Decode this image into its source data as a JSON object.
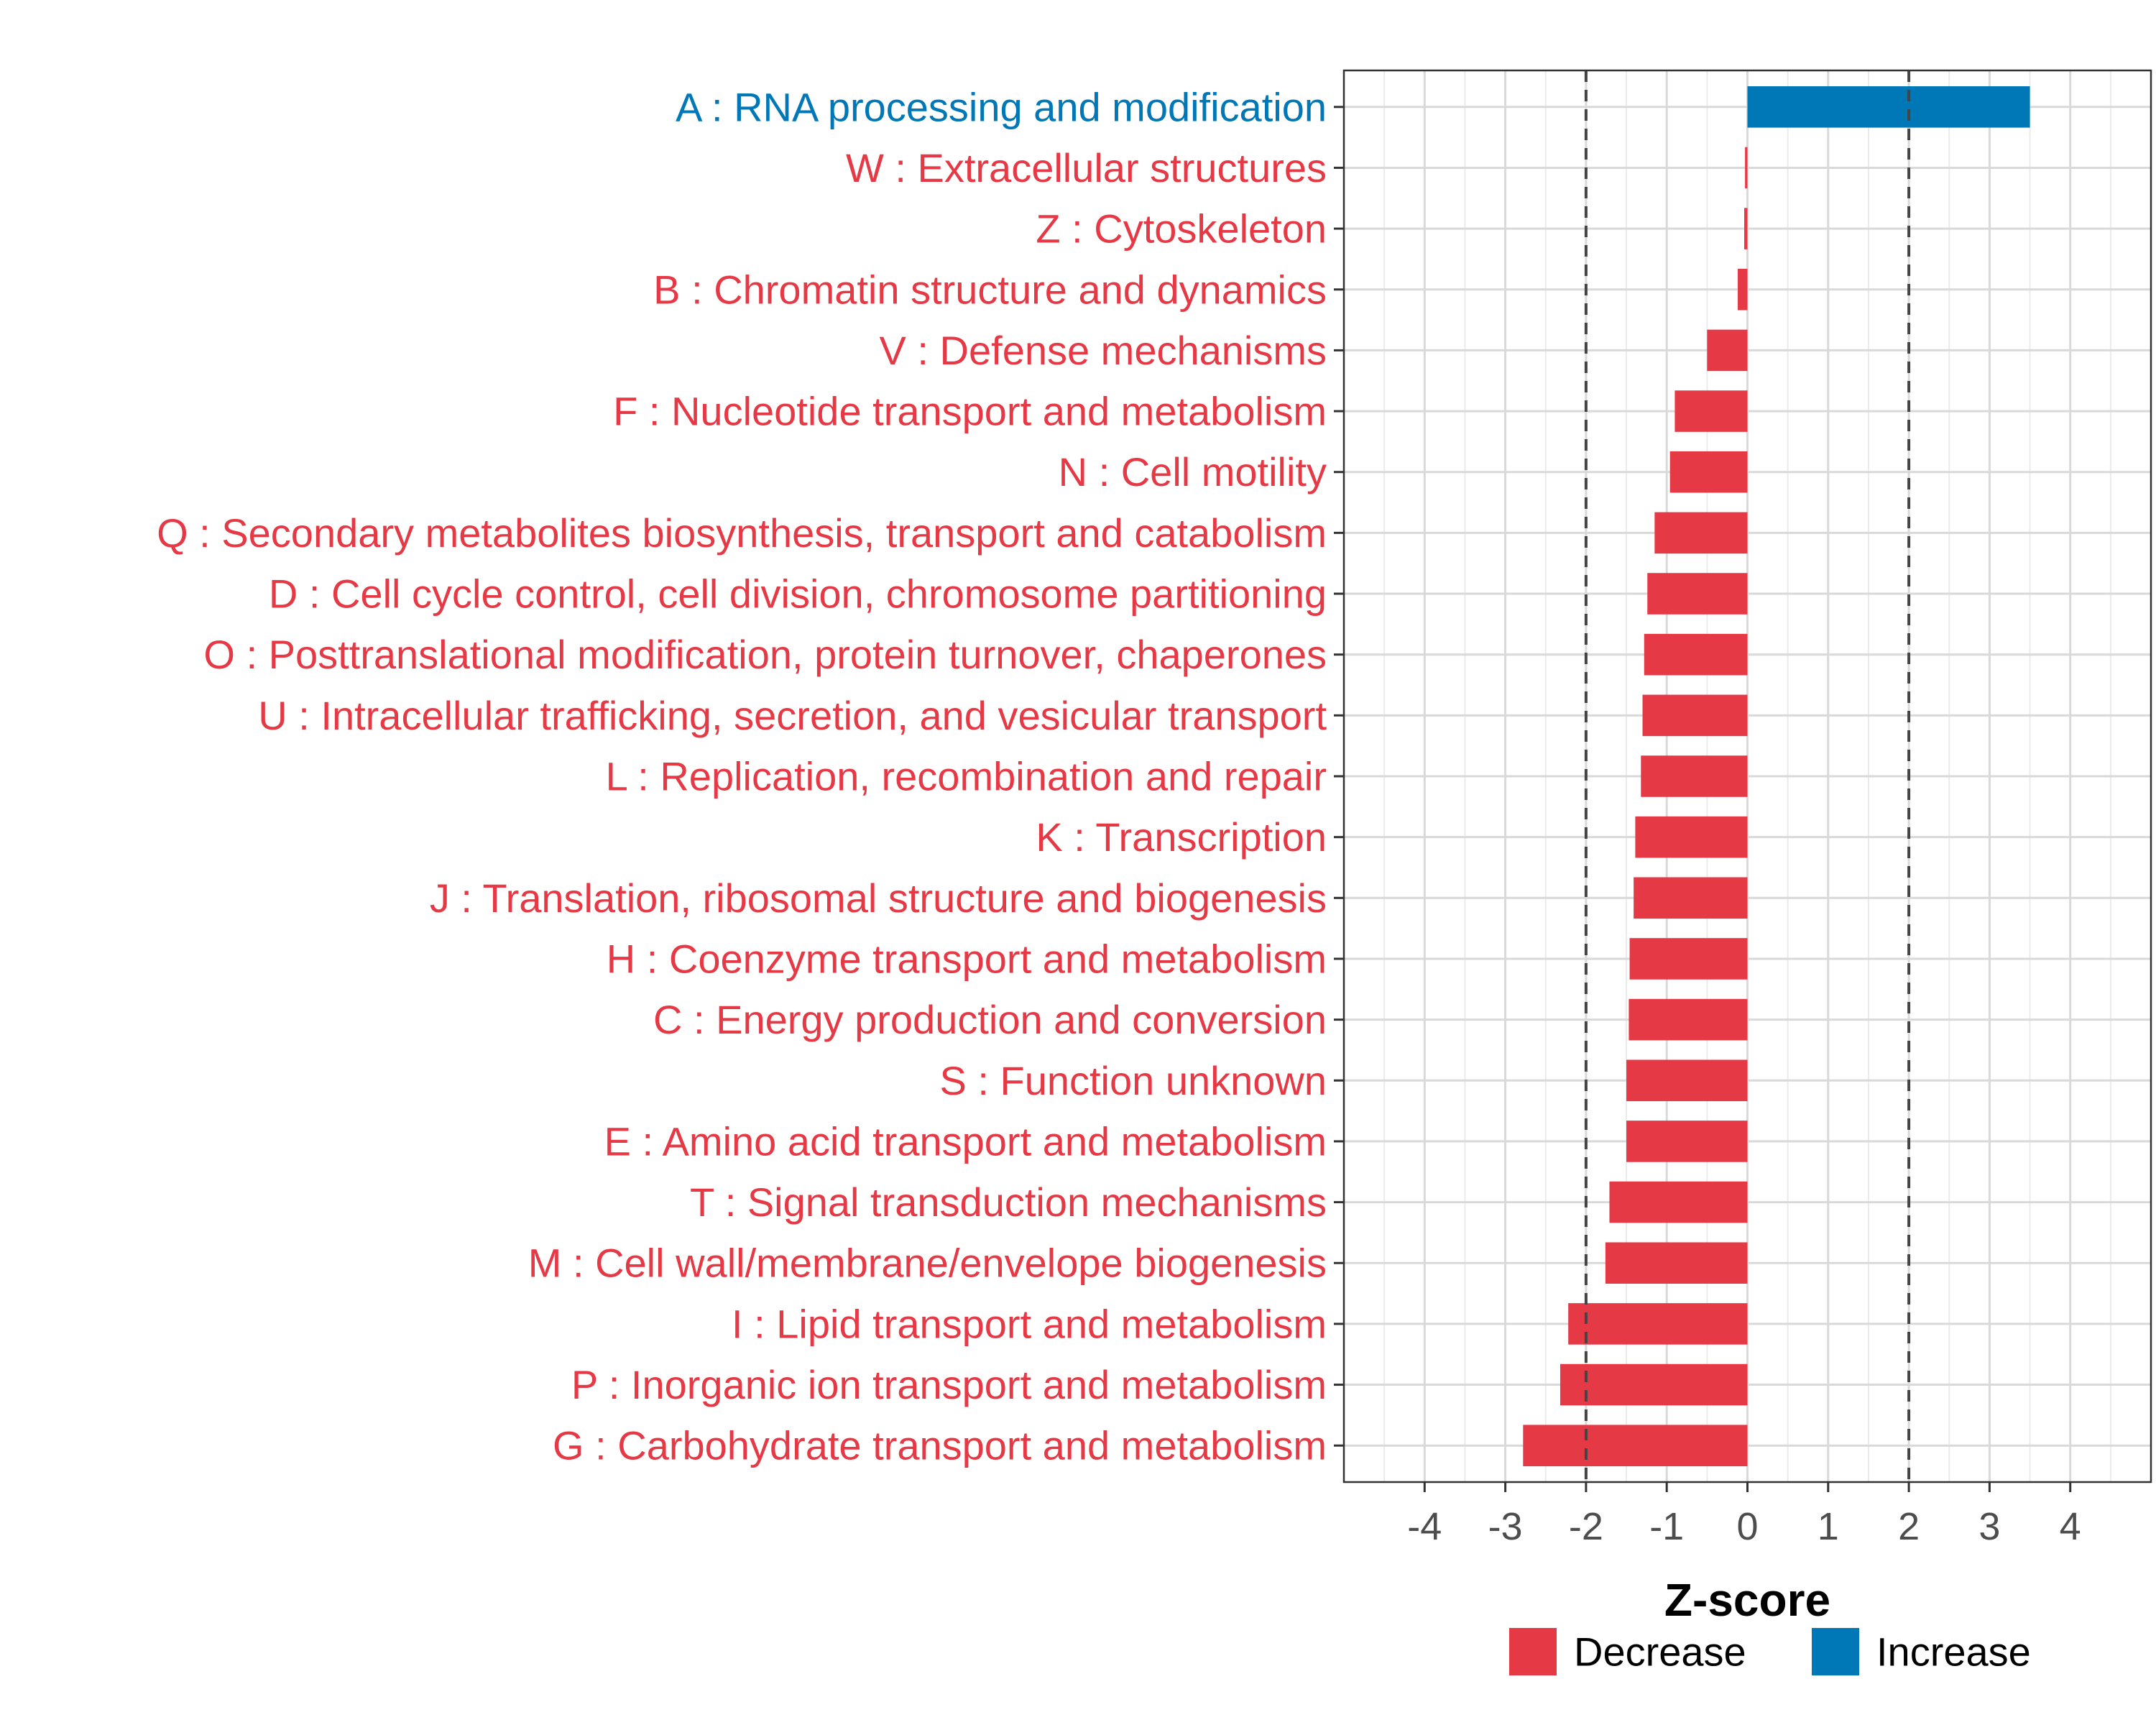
{
  "chart_data": {
    "type": "bar",
    "orientation": "horizontal",
    "title": "",
    "xlabel": "Z-score",
    "ylabel": "",
    "xlim": [
      -5,
      5
    ],
    "xticks": [
      -4,
      -3,
      -2,
      -1,
      0,
      1,
      2,
      3,
      4
    ],
    "xtick_labels": [
      "-4",
      "-3",
      "-2",
      "-1",
      "0",
      "1",
      "2",
      "3",
      "4"
    ],
    "threshold_lines": [
      -2,
      2
    ],
    "grid": true,
    "legend_position": "bottom",
    "colors": {
      "Decrease": "#e63946",
      "Increase": "#0077b6"
    },
    "legend": [
      {
        "label": "Decrease",
        "color": "#e63946"
      },
      {
        "label": "Increase",
        "color": "#0077b6"
      }
    ],
    "bars": [
      {
        "label": "A : RNA processing and modification",
        "value": 3.5,
        "group": "Increase"
      },
      {
        "label": "W : Extracellular structures",
        "value": -0.03,
        "group": "Decrease"
      },
      {
        "label": "Z : Cytoskeleton",
        "value": -0.04,
        "group": "Decrease"
      },
      {
        "label": "B : Chromatin structure and dynamics",
        "value": -0.12,
        "group": "Decrease"
      },
      {
        "label": "V : Defense mechanisms",
        "value": -0.5,
        "group": "Decrease"
      },
      {
        "label": "F : Nucleotide transport and metabolism",
        "value": -0.9,
        "group": "Decrease"
      },
      {
        "label": "N : Cell motility",
        "value": -0.96,
        "group": "Decrease"
      },
      {
        "label": "Q : Secondary metabolites biosynthesis, transport and catabolism",
        "value": -1.15,
        "group": "Decrease"
      },
      {
        "label": "D : Cell cycle control, cell division, chromosome partitioning",
        "value": -1.24,
        "group": "Decrease"
      },
      {
        "label": "O : Posttranslational modification, protein turnover, chaperones",
        "value": -1.28,
        "group": "Decrease"
      },
      {
        "label": "U : Intracellular trafficking, secretion, and vesicular transport",
        "value": -1.3,
        "group": "Decrease"
      },
      {
        "label": "L : Replication, recombination and repair",
        "value": -1.32,
        "group": "Decrease"
      },
      {
        "label": "K : Transcription",
        "value": -1.39,
        "group": "Decrease"
      },
      {
        "label": "J : Translation, ribosomal structure and biogenesis",
        "value": -1.41,
        "group": "Decrease"
      },
      {
        "label": "H : Coenzyme transport and metabolism",
        "value": -1.46,
        "group": "Decrease"
      },
      {
        "label": "C : Energy production and conversion",
        "value": -1.47,
        "group": "Decrease"
      },
      {
        "label": "S : Function unknown",
        "value": -1.5,
        "group": "Decrease"
      },
      {
        "label": "E : Amino acid transport and metabolism",
        "value": -1.5,
        "group": "Decrease"
      },
      {
        "label": "T : Signal transduction mechanisms",
        "value": -1.71,
        "group": "Decrease"
      },
      {
        "label": "M : Cell wall/membrane/envelope biogenesis",
        "value": -1.76,
        "group": "Decrease"
      },
      {
        "label": "I : Lipid transport and metabolism",
        "value": -2.22,
        "group": "Decrease"
      },
      {
        "label": "P : Inorganic ion transport and metabolism",
        "value": -2.32,
        "group": "Decrease"
      },
      {
        "label": "G : Carbohydrate transport and metabolism",
        "value": -2.78,
        "group": "Decrease"
      }
    ]
  }
}
